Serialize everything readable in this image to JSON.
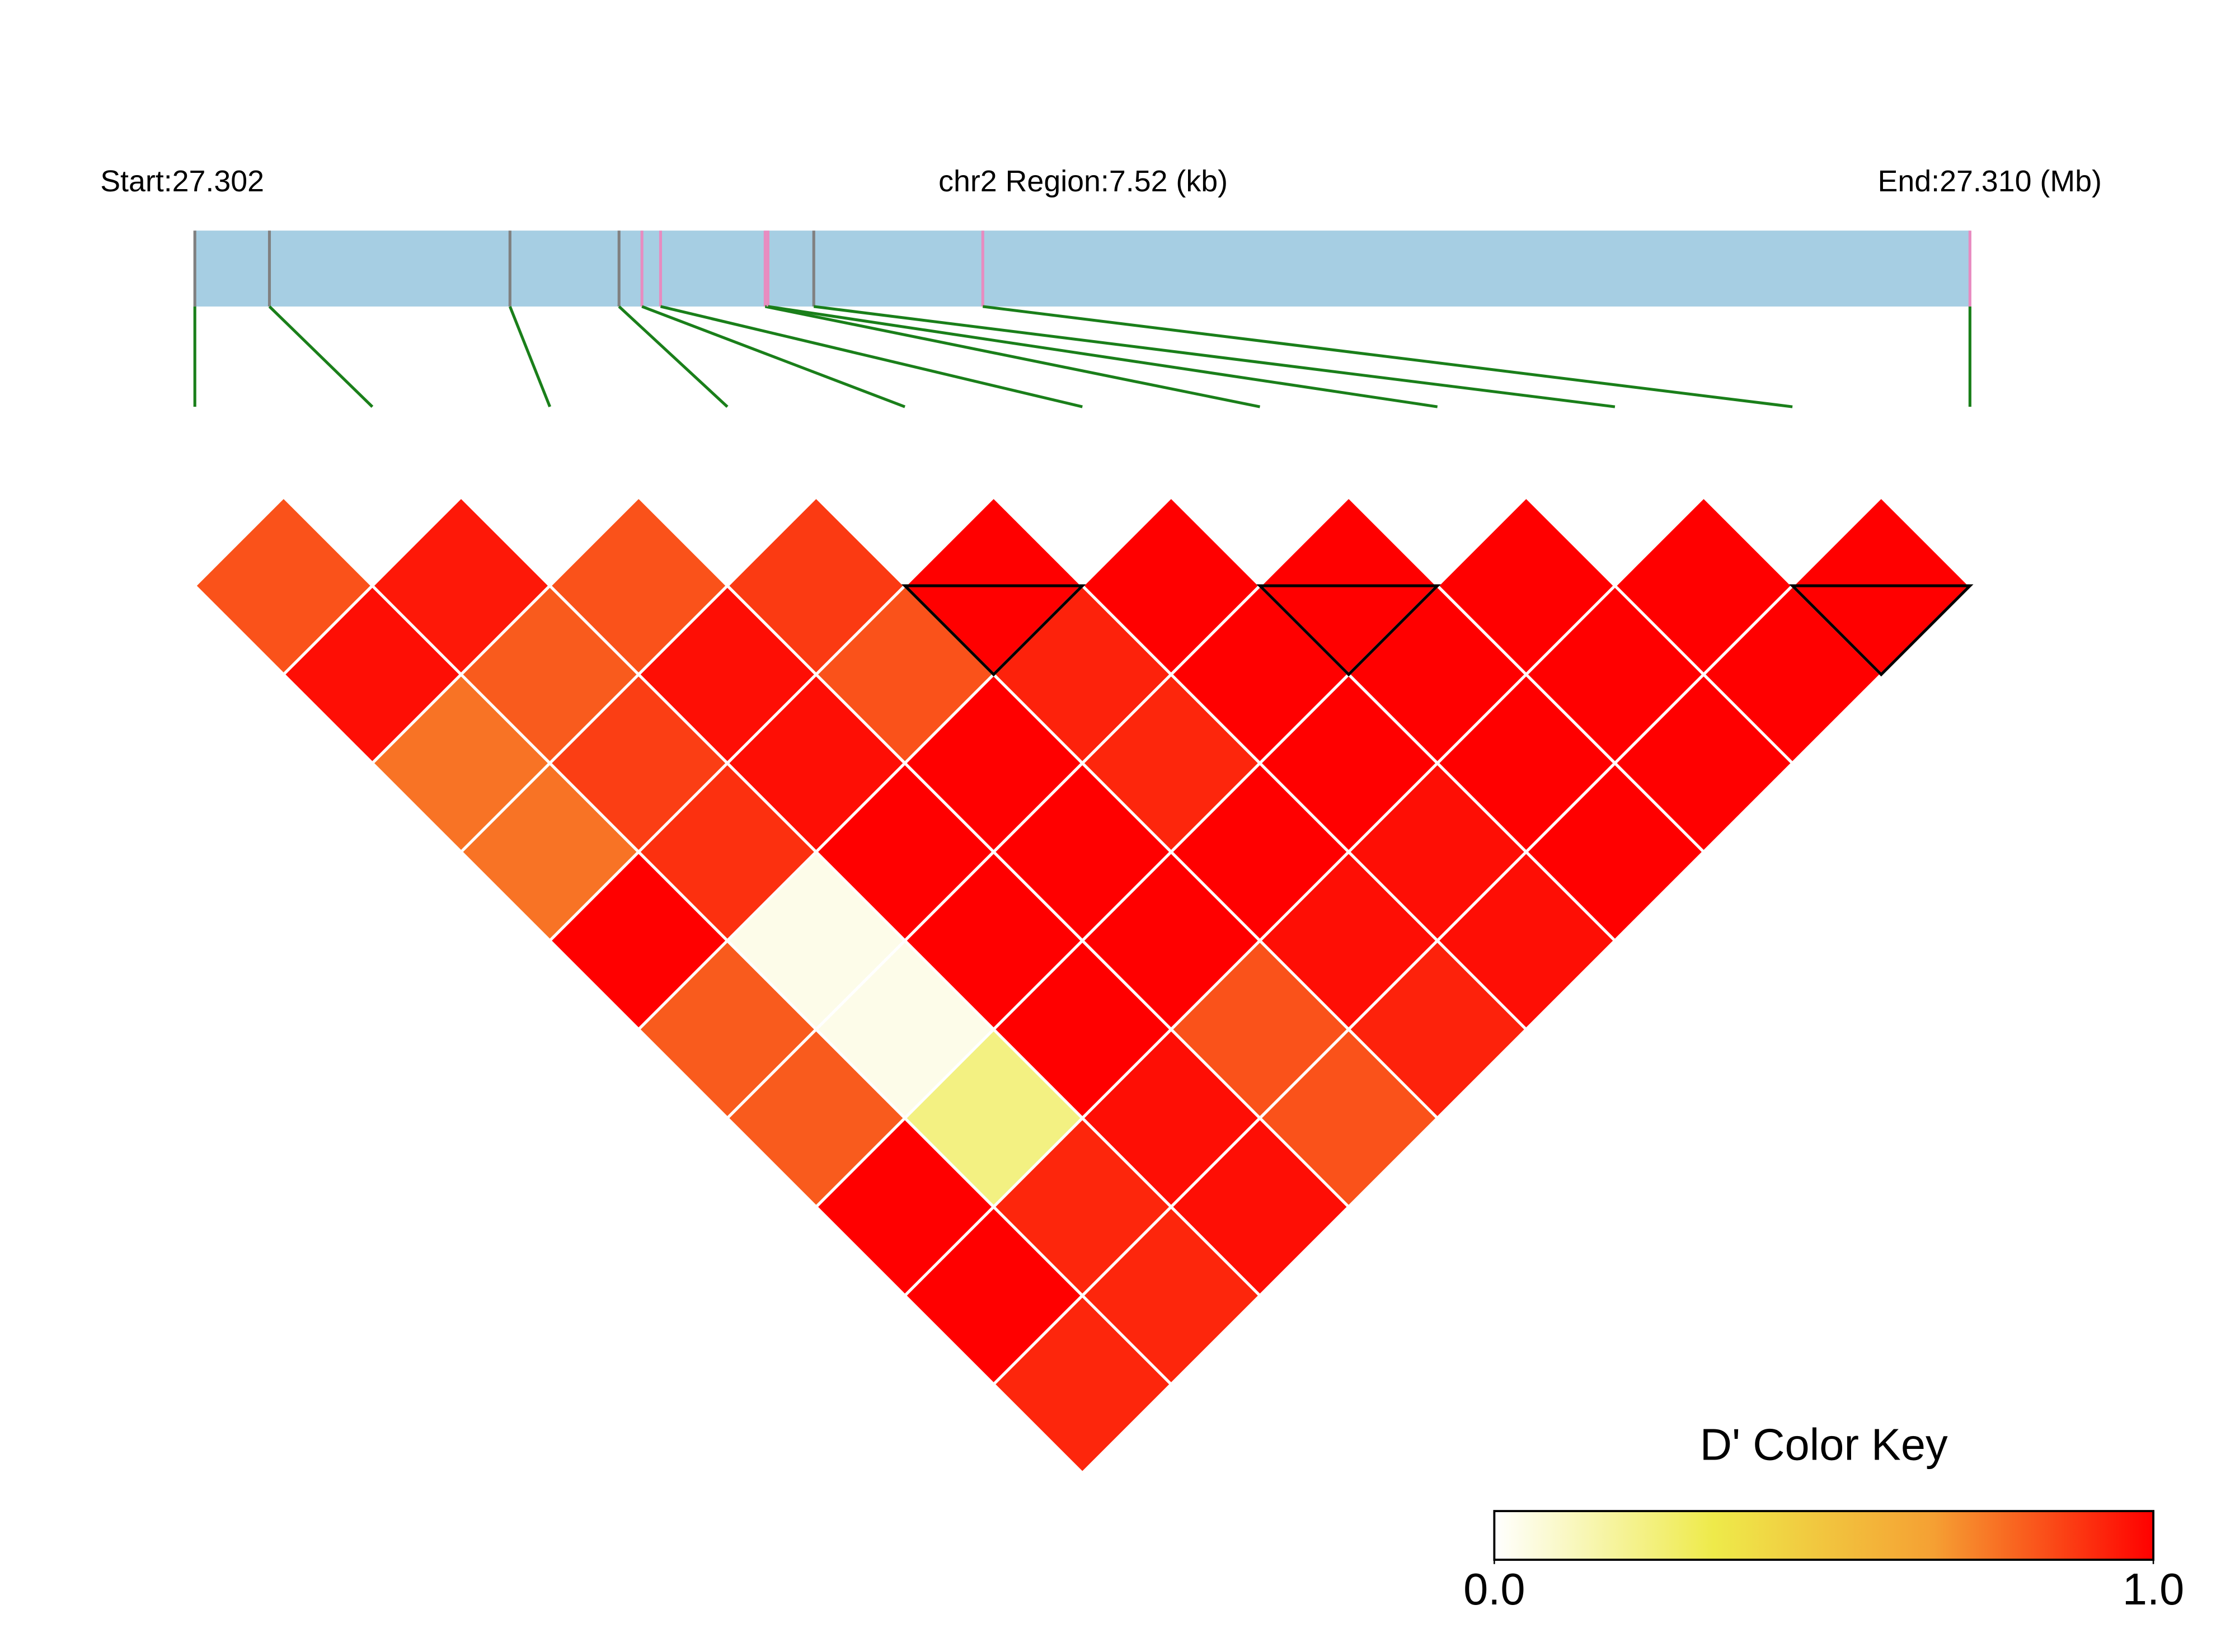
{
  "chart_data": {
    "type": "ld-heatmap",
    "start_label": "Start:27.302",
    "region_label": "chr2 Region:7.52 (kb)",
    "end_label": "End:27.310 (Mb)",
    "x": [
      0,
      0.316,
      1.335,
      1.797,
      1.894,
      1.973,
      2.416,
      2.428,
      2.622,
      3.338,
      7.52
    ],
    "xlim": [
      0,
      7.52
    ],
    "marker_colors": [
      "#808080",
      "#808080",
      "#808080",
      "#808080",
      "#e88bc0",
      "#e88bc0",
      "#e88bc0",
      "#e88bc0",
      "#808080",
      "#e88bc0",
      "#e88bc0"
    ],
    "region_color": "#a6cee3",
    "connector_color": "#1a7f1a",
    "dprime": [
      [
        0.83,
        0.97,
        0.76,
        0.76,
        1,
        0.81,
        0.81,
        1,
        1,
        0.92
      ],
      [
        0.95,
        0.81,
        0.87,
        0.9,
        0.04,
        0.04,
        0.23,
        0.92,
        0.92
      ],
      [
        0.83,
        0.97,
        0.97,
        1,
        1,
        1,
        0.97,
        0.97
      ],
      [
        0.88,
        0.83,
        1,
        1,
        1,
        0.83,
        0.83
      ],
      [
        1,
        0.93,
        0.92,
        1,
        0.97,
        0.93
      ],
      [
        1,
        1,
        1,
        0.97,
        0.97
      ],
      [
        1,
        1,
        1,
        1
      ],
      [
        1,
        1,
        1
      ],
      [
        1,
        1
      ],
      [
        1
      ]
    ],
    "blocks": [
      [
        4,
        5
      ],
      [
        6,
        7
      ],
      [
        9,
        10
      ]
    ],
    "color_key": {
      "title": "D' Color Key",
      "colormap": [
        "#ffffff",
        "#eeea4a",
        "#f5a033",
        "#ff0000"
      ],
      "ticks": [
        {
          "value": 0,
          "label": "0.0"
        },
        {
          "value": 1,
          "label": "1.0"
        }
      ],
      "lim": [
        0,
        1
      ]
    }
  }
}
